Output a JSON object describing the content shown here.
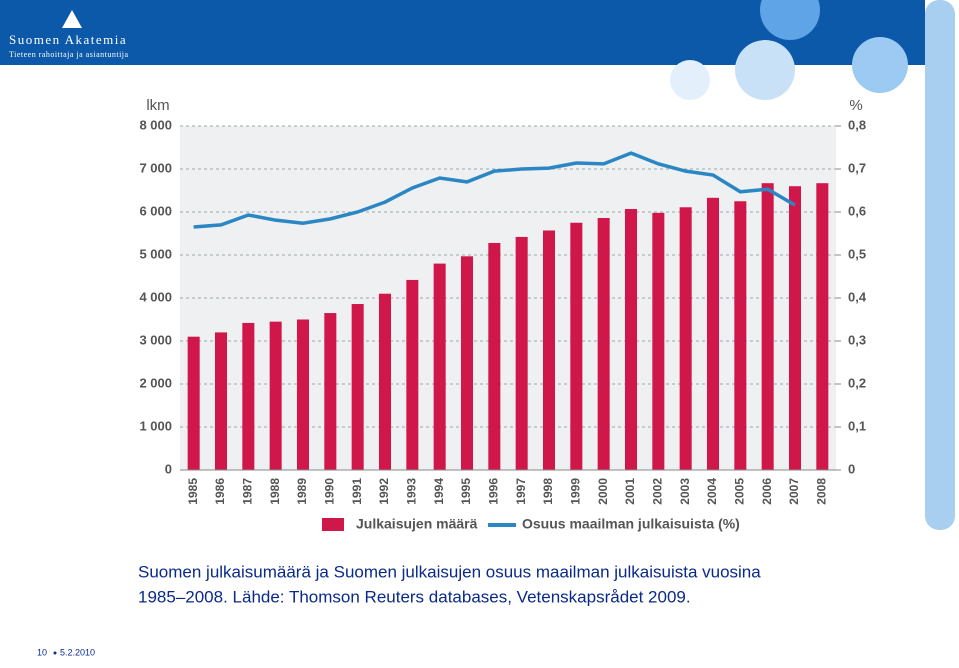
{
  "header": {
    "org": "Suomen Akatemia",
    "tagline": "Tieteen rahoittaja ja asiantuntija"
  },
  "chart_data": {
    "type": "bar",
    "y_label": "lkm",
    "y2_label": "%",
    "categories": [
      "1985",
      "1986",
      "1987",
      "1988",
      "1989",
      "1990",
      "1991",
      "1992",
      "1993",
      "1994",
      "1995",
      "1996",
      "1997",
      "1998",
      "1999",
      "2000",
      "2001",
      "2002",
      "2003",
      "2004",
      "2005",
      "2006",
      "2007",
      "2008"
    ],
    "series": [
      {
        "name": "Julkaisujen määrä",
        "type": "bar",
        "color": "#d0174a",
        "values": [
          3100,
          3200,
          3420,
          3450,
          3500,
          3650,
          3860,
          4100,
          4420,
          4800,
          4970,
          5280,
          5420,
          5570,
          5750,
          5860,
          6070,
          5980,
          6110,
          6330,
          6250,
          6670,
          6600,
          6670
        ]
      },
      {
        "name": "Osuus maailman julkaisuista (%)",
        "type": "line",
        "axis": "y2",
        "color": "#2b86c4",
        "values": [
          0.565,
          0.57,
          0.593,
          0.581,
          0.574,
          0.584,
          0.6,
          0.623,
          0.656,
          0.679,
          0.67,
          0.695,
          0.7,
          0.702,
          0.714,
          0.712,
          0.737,
          0.712,
          0.695,
          0.686,
          0.647,
          0.653,
          0.616,
          null
        ]
      }
    ],
    "ylim": [
      0,
      8000
    ],
    "yticks": [
      0,
      {
        "value": 1000,
        "label": "1 000"
      },
      {
        "value": 2000,
        "label": "2 000"
      },
      {
        "value": 3000,
        "label": "3 000"
      },
      {
        "value": 4000,
        "label": "4 000"
      },
      {
        "value": 5000,
        "label": "5 000"
      },
      {
        "value": 6000,
        "label": "6 000"
      },
      {
        "value": 7000,
        "label": "7 000"
      },
      {
        "value": 8000,
        "label": "8 000"
      }
    ],
    "y2lim": [
      0,
      0.8
    ],
    "y2ticks": [
      0,
      {
        "value": 0.1,
        "label": "0,1"
      },
      {
        "value": 0.2,
        "label": "0,2"
      },
      {
        "value": 0.3,
        "label": "0,3"
      },
      {
        "value": 0.4,
        "label": "0,4"
      },
      {
        "value": 0.5,
        "label": "0,5"
      },
      {
        "value": 0.6,
        "label": "0,6"
      },
      {
        "value": 0.7,
        "label": "0,7"
      },
      {
        "value": 0.8,
        "label": "0,8"
      }
    ],
    "grid": true
  },
  "caption": [
    "Suomen julkaisumäärä ja Suomen julkaisujen osuus maailman julkaisuista vuosina",
    "1985–2008. Lähde: Thomson Reuters databases, Vetenskapsrådet 2009."
  ],
  "footer": {
    "page": "10",
    "date": "5.2.2010"
  }
}
